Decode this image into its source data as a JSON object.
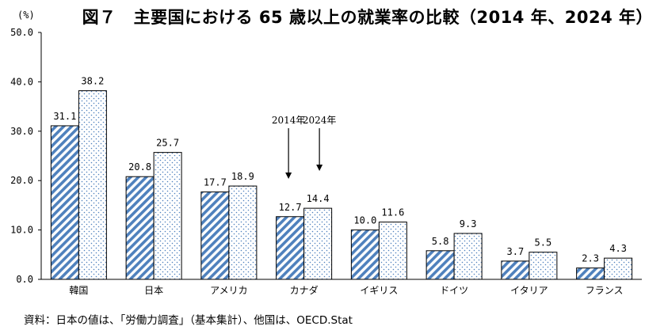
{
  "chart_data": {
    "type": "bar",
    "title_label": "図７",
    "title": "主要国における 65 歳以上の就業率の比較（2014 年、2024 年）",
    "ylabel": "(%)",
    "ylim": [
      0,
      50
    ],
    "yticks": [
      "0.0",
      "10.0",
      "20.0",
      "30.0",
      "40.0",
      "50.0"
    ],
    "categories": [
      "韓国",
      "日本",
      "アメリカ",
      "カナダ",
      "イギリス",
      "ドイツ",
      "イタリア",
      "フランス"
    ],
    "series": [
      {
        "name": "2014年",
        "values": [
          31.1,
          20.8,
          17.7,
          12.7,
          10.0,
          5.8,
          3.7,
          2.3
        ],
        "labels": [
          "31.1",
          "20.8",
          "17.7",
          "12.7",
          "10.0",
          "5.8",
          "3.7",
          "2.3"
        ],
        "color": "#4f81bd"
      },
      {
        "name": "2024年",
        "values": [
          38.2,
          25.7,
          18.9,
          14.4,
          11.6,
          9.3,
          5.5,
          4.3
        ],
        "labels": [
          "38.2",
          "25.7",
          "18.9",
          "14.4",
          "11.6",
          "9.3",
          "5.5",
          "4.3"
        ],
        "color": "#4f81bd"
      }
    ],
    "annotation_category": "カナダ",
    "source": "資料：日本の値は、「労働力調査」（基本集計）、他国は、OECD.Stat"
  }
}
